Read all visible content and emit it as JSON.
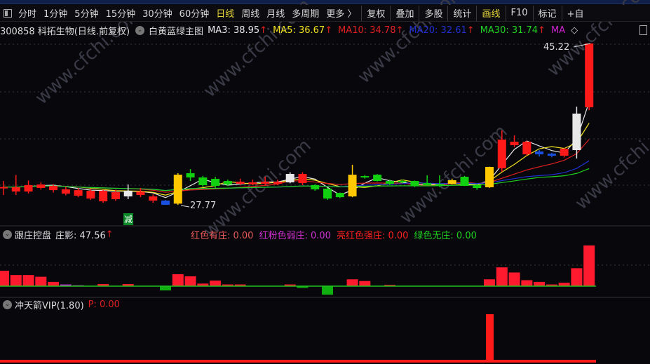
{
  "toolbar": {
    "items": [
      "分时",
      "1分钟",
      "5分钟",
      "15分钟",
      "30分钟",
      "60分钟",
      "日线",
      "周线",
      "月线",
      "多周期",
      "更多 〉"
    ],
    "active": "日线",
    "right_items": [
      "复权",
      "叠加",
      "多股",
      "统计",
      "画线",
      "F10",
      "标记",
      "+自"
    ],
    "right_active": "画线"
  },
  "info": {
    "stock": "300858 科拓生物(日线.前复权)",
    "template": "白黄蓝绿主图",
    "ma": [
      {
        "label": "MA3: 38.95",
        "color": "#e8e8e8"
      },
      {
        "label": "MA5: 36.67",
        "color": "#f0e020"
      },
      {
        "label": "MA10: 34.78",
        "color": "#e02020"
      },
      {
        "label": "MA20: 32.61",
        "color": "#2030d0"
      },
      {
        "label": "MA30: 31.74",
        "color": "#20d020"
      },
      {
        "label": "MA",
        "color": "#d020d0"
      }
    ],
    "arrow": "↑",
    "diamond": "◇"
  },
  "watermark": "www.cfchi.com",
  "main_chart": {
    "type": "candlestick",
    "ylim": [
      25.5,
      45.75
    ],
    "high_label": "45.22",
    "low_label": "27.77",
    "signal_label": "减",
    "candles": [
      [
        29.6,
        29.7,
        30.35,
        28.83,
        "red"
      ],
      [
        29.21,
        29.67,
        31.0,
        28.83,
        "red"
      ],
      [
        29.21,
        29.9,
        30.4,
        29.0,
        "red"
      ],
      [
        29.6,
        29.97,
        30.2,
        29.4,
        "red"
      ],
      [
        29.36,
        29.82,
        30.0,
        29.1,
        "red"
      ],
      [
        28.98,
        29.44,
        29.7,
        28.8,
        "red"
      ],
      [
        28.76,
        29.36,
        29.6,
        28.6,
        "red"
      ],
      [
        28.45,
        29.29,
        29.5,
        28.3,
        "red"
      ],
      [
        28.15,
        29.29,
        29.4,
        28.0,
        "red"
      ],
      [
        28.38,
        29.14,
        29.4,
        28.2,
        "red"
      ],
      [
        28.68,
        29.29,
        29.97,
        28.38,
        "white"
      ],
      [
        28.83,
        29.21,
        29.6,
        28.6,
        "red"
      ],
      [
        28.23,
        28.68,
        28.9,
        28.0,
        "red"
      ],
      [
        28.23,
        27.77,
        28.3,
        27.77,
        "blue"
      ],
      [
        27.9,
        31.03,
        31.19,
        27.77,
        "yellow"
      ],
      [
        31.19,
        30.73,
        31.64,
        30.35,
        "green"
      ],
      [
        30.73,
        29.9,
        30.9,
        29.7,
        "green"
      ],
      [
        30.58,
        29.82,
        30.8,
        29.6,
        "green"
      ],
      [
        30.35,
        29.97,
        30.5,
        29.8,
        "green"
      ],
      [
        30.05,
        30.27,
        30.6,
        29.9,
        "red"
      ],
      [
        30.0,
        30.2,
        30.5,
        29.9,
        "red"
      ],
      [
        30.05,
        30.27,
        30.81,
        29.9,
        "red"
      ],
      [
        30.05,
        30.27,
        30.5,
        29.9,
        "red"
      ],
      [
        30.2,
        31.11,
        31.3,
        30.1,
        "white"
      ],
      [
        30.12,
        31.11,
        31.3,
        29.9,
        "red"
      ],
      [
        29.9,
        29.44,
        30.0,
        29.3,
        "green"
      ],
      [
        29.52,
        28.45,
        29.6,
        28.3,
        "green"
      ],
      [
        29.06,
        28.6,
        29.1,
        28.5,
        "green"
      ],
      [
        28.68,
        31.03,
        32.1,
        28.6,
        "yellow"
      ],
      [
        30.88,
        30.73,
        31.0,
        30.6,
        "green"
      ],
      [
        31.03,
        30.35,
        31.1,
        30.3,
        "green"
      ],
      [
        30.35,
        30.05,
        30.5,
        29.9,
        "green"
      ],
      [
        30.35,
        30.2,
        30.5,
        30.1,
        "green"
      ],
      [
        30.35,
        29.82,
        30.4,
        29.7,
        "green"
      ],
      [
        30.12,
        29.9,
        30.96,
        29.8,
        "green"
      ],
      [
        30.0,
        29.95,
        30.96,
        29.7,
        "green"
      ],
      [
        30.05,
        30.43,
        30.6,
        29.97,
        "yellow"
      ],
      [
        30.81,
        29.82,
        30.9,
        29.8,
        "green"
      ],
      [
        29.9,
        29.59,
        30.0,
        29.4,
        "green"
      ],
      [
        29.67,
        31.87,
        31.9,
        29.6,
        "yellow"
      ],
      [
        31.72,
        34.83,
        35.81,
        31.34,
        "red"
      ],
      [
        34.22,
        34.6,
        35.28,
        34.0,
        "red"
      ],
      [
        33.23,
        34.6,
        34.7,
        33.1,
        "red"
      ],
      [
        33.54,
        33.23,
        33.7,
        33.0,
        "blue"
      ],
      [
        33.31,
        33.08,
        33.4,
        32.9,
        "blue"
      ],
      [
        33.08,
        33.84,
        33.9,
        32.9,
        "red"
      ],
      [
        33.69,
        37.64,
        38.39,
        32.78,
        "white"
      ],
      [
        38.32,
        45.22,
        45.22,
        38.0,
        "red"
      ]
    ],
    "colors": {
      "red": "#ff1a1a",
      "green": "#10d010",
      "yellow": "#ffc800",
      "white": "#e8e8e8",
      "blue": "#1a50e0"
    }
  },
  "indicator1": {
    "name": "跟庄控盘",
    "value_label": "庄影: 47.56",
    "legend": [
      {
        "label": "红色有庄: 0.00",
        "color": "#e85a5a"
      },
      {
        "label": "红粉色弱庄: 0.00",
        "color": "#d030d0"
      },
      {
        "label": "亮红色强庄: 0.00",
        "color": "#ff2020"
      },
      {
        "label": "绿色无庄: 0.00",
        "color": "#20d020"
      }
    ],
    "bars": [
      [
        18,
        "red"
      ],
      [
        13,
        "red"
      ],
      [
        13,
        "red"
      ],
      [
        11,
        "red"
      ],
      [
        5,
        "red"
      ],
      [
        2,
        "magenta"
      ],
      [
        1,
        "magenta"
      ],
      [
        0,
        "red"
      ],
      [
        2.5,
        "red"
      ],
      [
        0,
        "red"
      ],
      [
        2.5,
        "red"
      ],
      [
        0,
        "red"
      ],
      [
        0,
        "red"
      ],
      [
        -5,
        "green"
      ],
      [
        14,
        "red"
      ],
      [
        11.5,
        "red"
      ],
      [
        3,
        "red"
      ],
      [
        6.5,
        "red"
      ],
      [
        2,
        "red"
      ],
      [
        2,
        "red"
      ],
      [
        0,
        "red"
      ],
      [
        0,
        "red"
      ],
      [
        0,
        "red"
      ],
      [
        2,
        "red"
      ],
      [
        -2,
        "green"
      ],
      [
        0,
        "red"
      ],
      [
        -10,
        "green"
      ],
      [
        0,
        "red"
      ],
      [
        8,
        "red"
      ],
      [
        6,
        "red"
      ],
      [
        0,
        "red"
      ],
      [
        1.5,
        "red"
      ],
      [
        0,
        "red"
      ],
      [
        0,
        "red"
      ],
      [
        0,
        "red"
      ],
      [
        0,
        "red"
      ],
      [
        0,
        "red"
      ],
      [
        0,
        "red"
      ],
      [
        0,
        "red"
      ],
      [
        8,
        "red"
      ],
      [
        22,
        "red"
      ],
      [
        16,
        "red"
      ],
      [
        7,
        "red"
      ],
      [
        5,
        "red"
      ],
      [
        2,
        "red"
      ],
      [
        4,
        "red"
      ],
      [
        21,
        "red"
      ],
      [
        47.56,
        "red"
      ]
    ]
  },
  "indicator2": {
    "name": "冲天箭VIP(1.80)",
    "value_label": "P: 0.00",
    "signals": [
      0,
      0,
      0,
      0,
      0,
      0,
      0,
      0,
      0,
      0,
      0,
      0,
      0,
      0,
      0,
      0,
      0,
      0,
      0,
      0,
      0,
      0,
      0,
      0,
      0,
      0,
      0,
      0,
      0,
      0,
      0,
      0,
      0,
      0,
      0,
      0,
      0,
      0,
      0,
      1,
      0,
      0,
      0,
      0,
      0,
      0,
      0,
      0
    ]
  }
}
